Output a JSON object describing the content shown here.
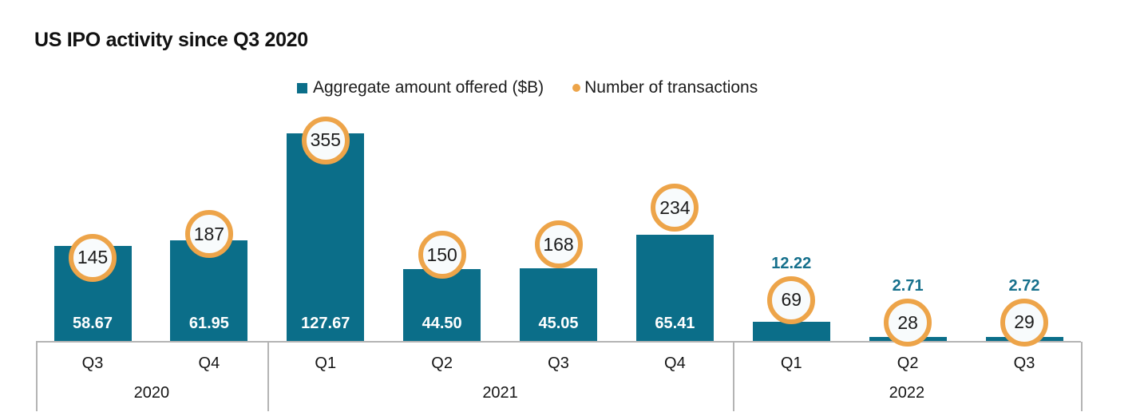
{
  "title": "US IPO activity since Q3 2020",
  "legend": [
    {
      "label": "Aggregate amount offered ($B)",
      "marker": "square"
    },
    {
      "label": "Number of transactions",
      "marker": "ring"
    }
  ],
  "colors": {
    "bar_teal": "#0b6e89",
    "ring_orange": "#eda449",
    "circle_fill": "#f8fbfc",
    "axis_gray": "#b4b4b4",
    "label_teal": "#16708c",
    "text_dark": "#151515"
  },
  "chart_data": {
    "type": "bar",
    "title": "US IPO activity since Q3 2020",
    "categories": [
      "Q3 2020",
      "Q4 2020",
      "Q1 2021",
      "Q2 2021",
      "Q3 2021",
      "Q4 2021",
      "Q1 2022",
      "Q2 2022",
      "Q3 2022"
    ],
    "quarter_labels": [
      "Q3",
      "Q4",
      "Q1",
      "Q2",
      "Q3",
      "Q4",
      "Q1",
      "Q2",
      "Q3"
    ],
    "year_groups": [
      {
        "label": "2020",
        "quarters": 2
      },
      {
        "label": "2021",
        "quarters": 4
      },
      {
        "label": "2022",
        "quarters": 3
      }
    ],
    "series": [
      {
        "name": "Aggregate amount offered ($B)",
        "type": "bar",
        "values": [
          58.67,
          61.95,
          127.67,
          44.5,
          45.05,
          65.41,
          12.22,
          2.71,
          2.72
        ],
        "value_labels": [
          "58.67",
          "61.95",
          "127.67",
          "44.50",
          "45.05",
          "65.41",
          "12.22",
          "2.71",
          "2.72"
        ],
        "label_positions": [
          "inside",
          "inside",
          "inside",
          "inside",
          "inside",
          "inside",
          "above",
          "above",
          "above"
        ]
      },
      {
        "name": "Number of transactions",
        "type": "point",
        "values": [
          145,
          187,
          355,
          150,
          168,
          234,
          69,
          28,
          29
        ]
      }
    ],
    "legend_position": "top",
    "grid": false,
    "value_axis_visible": false
  }
}
